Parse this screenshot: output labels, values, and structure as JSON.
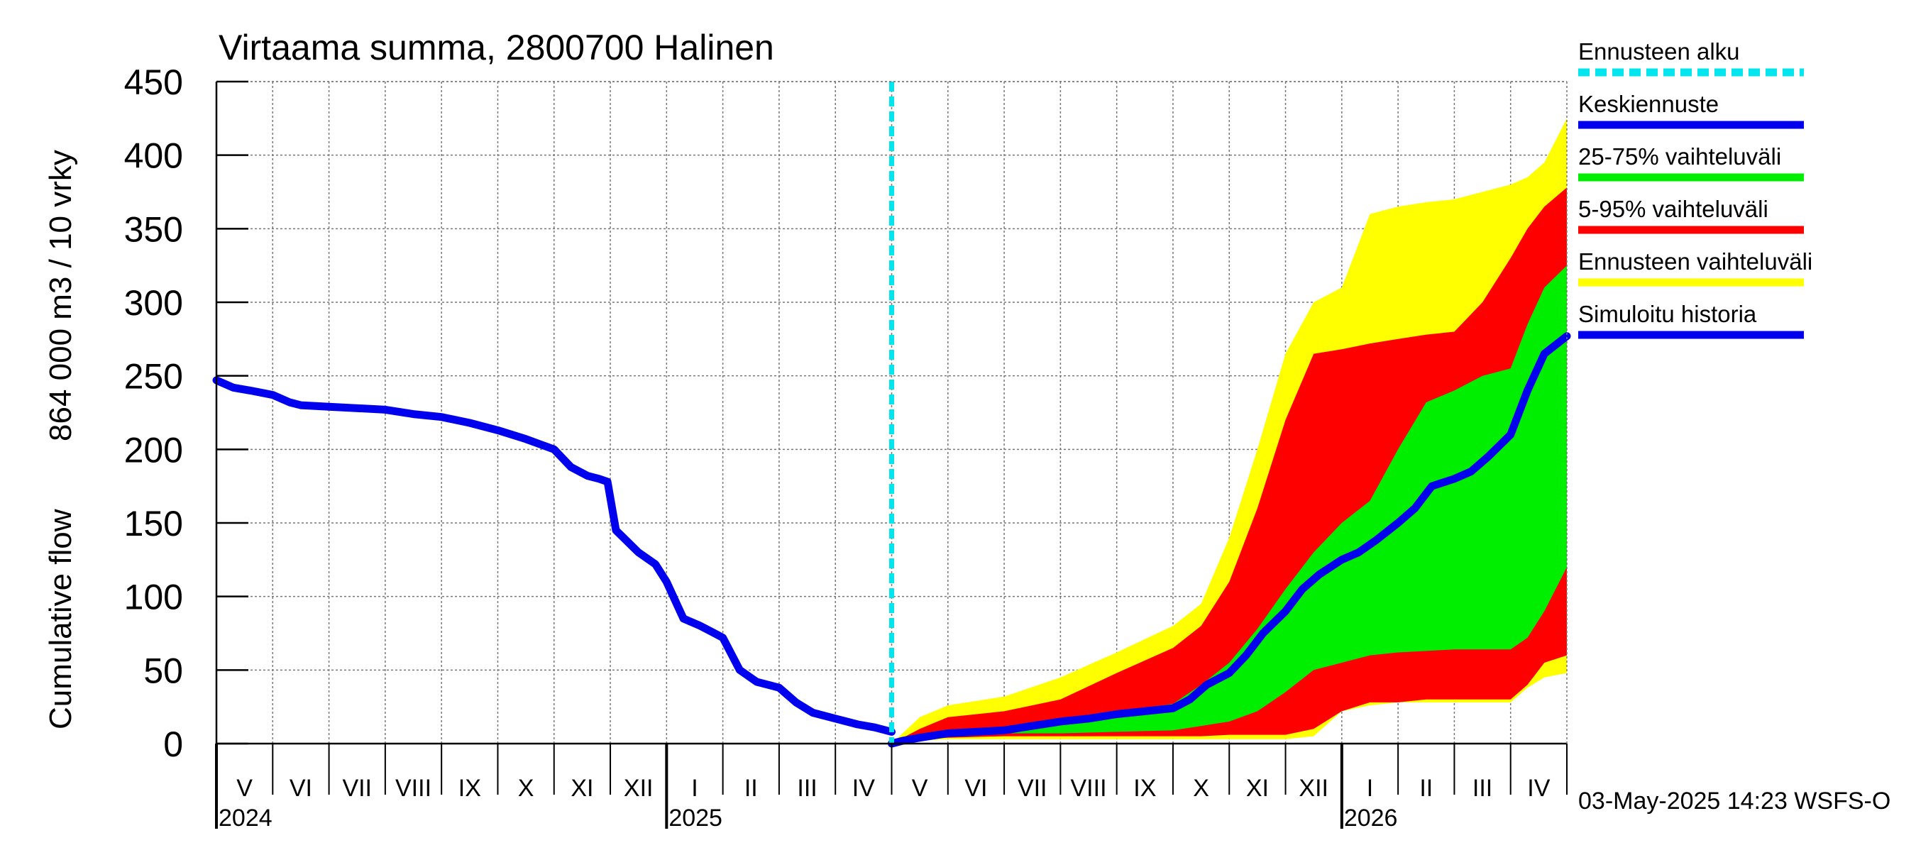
{
  "chart_data": {
    "type": "area",
    "title": "Virtaama summa, 2800700 Halinen",
    "ylabel_line1": "864 000 m3 / 10 vrky",
    "ylabel_line2": "Cumulative flow",
    "ylim": [
      0,
      450
    ],
    "y_ticks": [
      "0",
      "50",
      "100",
      "150",
      "200",
      "250",
      "300",
      "350",
      "400",
      "450"
    ],
    "x_unit": "months since 2024-05-01",
    "xlim": [
      0,
      24
    ],
    "month_labels": [
      "V",
      "VI",
      "VII",
      "VIII",
      "IX",
      "X",
      "XI",
      "XII",
      "I",
      "II",
      "III",
      "IV",
      "V",
      "VI",
      "VII",
      "VIII",
      "IX",
      "X",
      "XI",
      "XII",
      "I",
      "II",
      "III",
      "IV"
    ],
    "year_labels": [
      {
        "label": "2024",
        "month_index": 0
      },
      {
        "label": "2025",
        "month_index": 8
      },
      {
        "label": "2026",
        "month_index": 20
      }
    ],
    "forecast_start": 12.0,
    "colors": {
      "forecast_start": "#00e5ee",
      "median": "#0000ee",
      "band_25_75": "#00ee00",
      "band_5_95": "#ff0000",
      "band_full": "#ffff00",
      "history": "#0000ee"
    },
    "legend": [
      {
        "label": "Ennusteen alku",
        "key": "forecast_start",
        "style": "dashed"
      },
      {
        "label": "Keskiennuste",
        "key": "median",
        "style": "solid"
      },
      {
        "label": "25-75% vaihteluväli",
        "key": "band_25_75",
        "style": "solid"
      },
      {
        "label": "5-95% vaihteluväli",
        "key": "band_5_95",
        "style": "solid"
      },
      {
        "label": "Ennusteen vaihteluväli",
        "key": "band_full",
        "style": "solid"
      },
      {
        "label": "Simuloitu historia",
        "key": "history",
        "style": "solid"
      }
    ],
    "series": {
      "history": {
        "name": "Simuloitu historia",
        "x": [
          0,
          0.3,
          0.6,
          1.0,
          1.3,
          1.5,
          2.0,
          3.0,
          3.5,
          4.0,
          4.5,
          5.0,
          5.5,
          6.0,
          6.3,
          6.6,
          6.8,
          6.95,
          7.1,
          7.5,
          7.8,
          8.0,
          8.3,
          8.6,
          8.8,
          9.0,
          9.3,
          9.6,
          9.8,
          10.0,
          10.3,
          10.6,
          11.0,
          11.4,
          11.7,
          12.0
        ],
        "y": [
          247,
          242,
          240,
          237,
          232,
          230,
          229,
          227,
          224,
          222,
          218,
          213,
          207,
          200,
          188,
          182,
          180,
          178,
          145,
          130,
          122,
          110,
          85,
          80,
          76,
          72,
          50,
          42,
          40,
          38,
          28,
          21,
          17,
          13,
          11,
          8
        ]
      },
      "median": {
        "name": "Keskiennuste",
        "x": [
          12.0,
          12.2,
          12.5,
          13.0,
          14.0,
          14.5,
          15.0,
          15.5,
          16.0,
          16.5,
          17.0,
          17.3,
          17.6,
          18.0,
          18.3,
          18.6,
          19.0,
          19.3,
          19.6,
          20.0,
          20.3,
          20.6,
          21.0,
          21.3,
          21.6,
          22.0,
          22.3,
          22.6,
          23.0,
          23.3,
          23.6,
          24.0
        ],
        "y": [
          0,
          2,
          4,
          7,
          9,
          12,
          15,
          17,
          20,
          22,
          24,
          30,
          40,
          48,
          60,
          75,
          90,
          105,
          115,
          125,
          130,
          138,
          150,
          160,
          175,
          180,
          185,
          195,
          210,
          240,
          265,
          277
        ]
      },
      "band_25_75": {
        "name": "25-75% vaihteluväli",
        "x": [
          12.0,
          12.5,
          13.0,
          14.0,
          15.0,
          16.0,
          17.0,
          17.5,
          18.0,
          18.5,
          19.0,
          19.5,
          20.0,
          20.5,
          21.0,
          21.5,
          22.0,
          22.5,
          23.0,
          23.3,
          23.6,
          24.0
        ],
        "lower": [
          0,
          4,
          6,
          7,
          7,
          8,
          9,
          12,
          15,
          22,
          35,
          50,
          55,
          60,
          62,
          63,
          64,
          64,
          64,
          72,
          90,
          120
        ],
        "upper": [
          0,
          5,
          8,
          11,
          16,
          21,
          27,
          40,
          55,
          78,
          105,
          130,
          150,
          165,
          200,
          232,
          240,
          250,
          255,
          285,
          310,
          325
        ]
      },
      "band_5_95": {
        "name": "5-95% vaihteluväli",
        "x": [
          12.0,
          12.5,
          13.0,
          14.0,
          15.0,
          16.0,
          17.0,
          17.5,
          18.0,
          18.5,
          19.0,
          19.5,
          20.0,
          20.5,
          21.0,
          21.5,
          22.0,
          22.5,
          23.0,
          23.3,
          23.6,
          24.0
        ],
        "lower": [
          0,
          3,
          4,
          5,
          5,
          5,
          5,
          5,
          6,
          6,
          6,
          10,
          22,
          28,
          28,
          30,
          30,
          30,
          30,
          40,
          55,
          60
        ],
        "upper": [
          0,
          10,
          18,
          22,
          30,
          48,
          65,
          80,
          110,
          160,
          220,
          265,
          268,
          272,
          275,
          278,
          280,
          300,
          330,
          350,
          365,
          378
        ]
      },
      "band_full": {
        "name": "Ennusteen vaihteluväli",
        "x": [
          12.0,
          12.5,
          13.0,
          14.0,
          15.0,
          16.0,
          17.0,
          17.5,
          18.0,
          18.5,
          19.0,
          19.5,
          20.0,
          20.5,
          21.0,
          21.5,
          22.0,
          22.5,
          23.0,
          23.3,
          23.6,
          24.0
        ],
        "lower": [
          0,
          2,
          3,
          3,
          3,
          3,
          3,
          3,
          3,
          3,
          3,
          5,
          22,
          26,
          28,
          28,
          28,
          28,
          28,
          38,
          45,
          48
        ],
        "upper": [
          0,
          18,
          26,
          32,
          45,
          62,
          80,
          95,
          140,
          200,
          265,
          300,
          310,
          360,
          365,
          368,
          370,
          375,
          380,
          385,
          395,
          425
        ]
      }
    },
    "timestamp": "03-May-2025 14:23 WSFS-O"
  }
}
